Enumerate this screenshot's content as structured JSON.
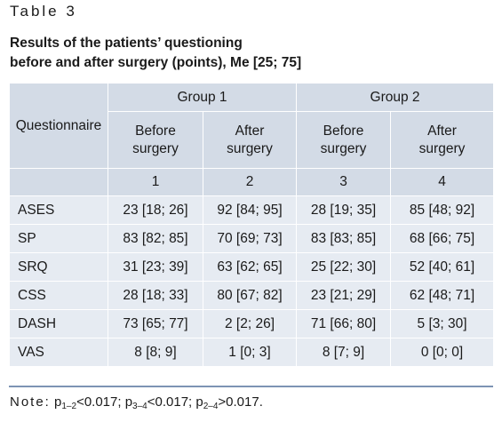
{
  "caption": "Table 3",
  "title": {
    "line1": "Results of the patients’ questioning",
    "line2": "before and after surgery (points), Me [25; 75]"
  },
  "table": {
    "header": {
      "questionnaire": "Questionnaire",
      "group1": "Group 1",
      "group2": "Group 2",
      "sub_before_1": "Before",
      "sub_before_2": "surgery",
      "sub_after_1": "After",
      "sub_after_2": "surgery",
      "col_numbers": [
        "1",
        "2",
        "3",
        "4"
      ]
    },
    "rows": [
      {
        "label": "ASES",
        "values": [
          "23 [18; 26]",
          "92 [84; 95]",
          "28 [19; 35]",
          "85 [48; 92]"
        ]
      },
      {
        "label": "SP",
        "values": [
          "83 [82; 85]",
          "70 [69; 73]",
          "83 [83; 85]",
          "68 [66; 75]"
        ]
      },
      {
        "label": "SRQ",
        "values": [
          "31 [23; 39]",
          "63 [62; 65]",
          "25 [22; 30]",
          "52 [40; 61]"
        ]
      },
      {
        "label": "CSS",
        "values": [
          "28 [18; 33]",
          "80 [67; 82]",
          "23 [21; 29]",
          "62 [48; 71]"
        ]
      },
      {
        "label": "DASH",
        "values": [
          "73 [65; 77]",
          "2 [2; 26]",
          "71 [66; 80]",
          "5 [3; 30]"
        ]
      },
      {
        "label": "VAS",
        "values": [
          "8 [8; 9]",
          "1 [0; 3]",
          "8 [7; 9]",
          "0 [0; 0]"
        ]
      }
    ]
  },
  "note": {
    "prefix": "Note:",
    "p": "p",
    "sub_1_2": "1–2",
    "sub_3_4": "3–4",
    "sub_2_4": "2–4",
    "val_1_2": "<0.017; ",
    "val_3_4": "<0.017; ",
    "val_2_4": ">0.017."
  },
  "colors": {
    "header_bg": "#d3dbe6",
    "body_bg": "#e6ebf2",
    "rule": "#7d93b4"
  }
}
